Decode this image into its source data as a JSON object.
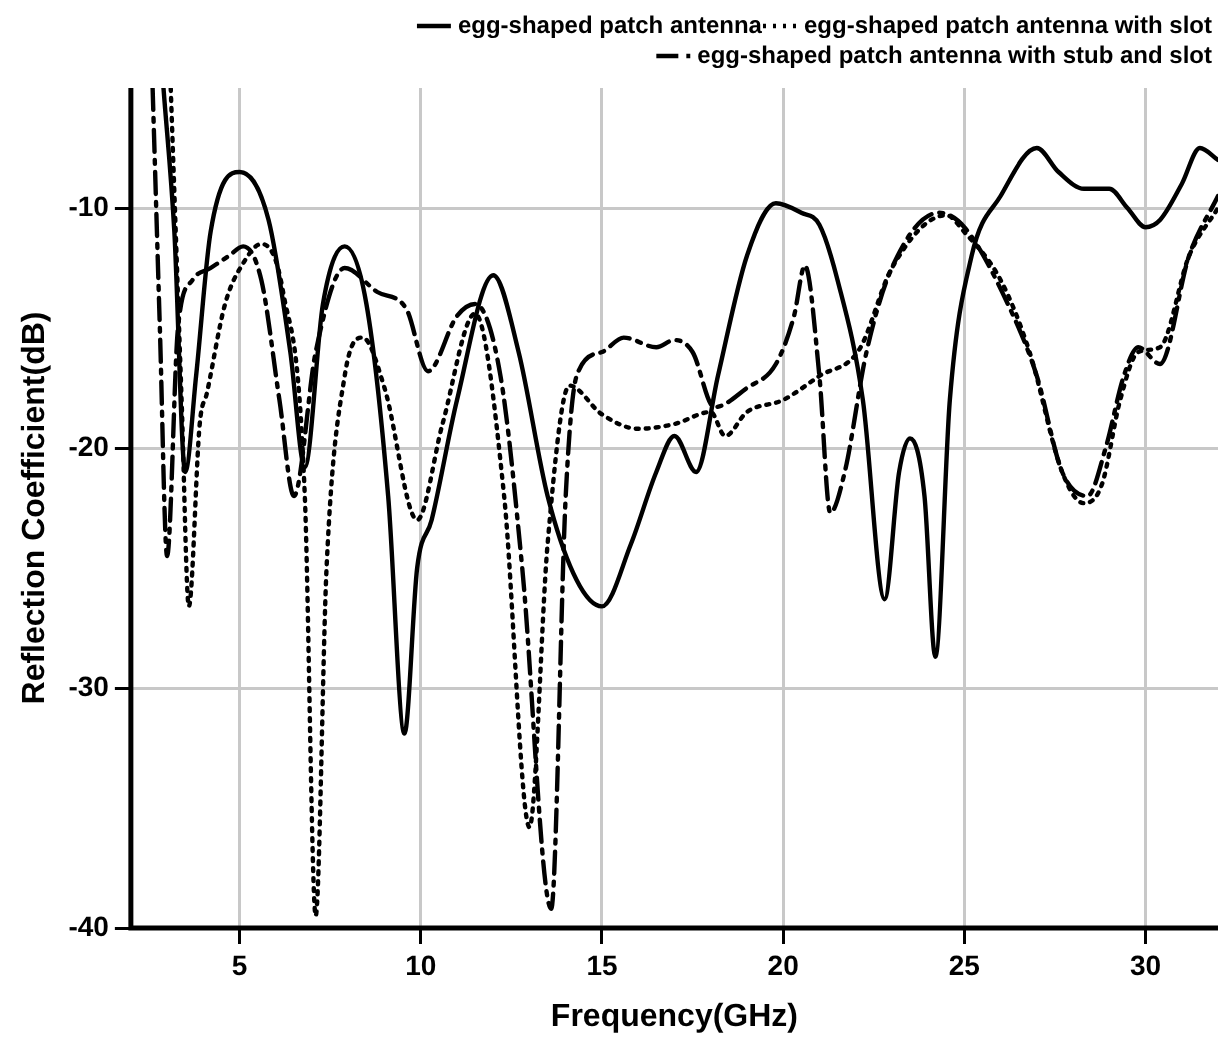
{
  "chart_data": {
    "type": "line",
    "xlabel": "Frequency(GHz)",
    "ylabel": "Reflection Coefficient(dB)",
    "xlim": [
      2,
      32
    ],
    "ylim": [
      -40,
      -5
    ],
    "xticks": [
      5,
      10,
      15,
      20,
      25,
      30
    ],
    "yticks": [
      -40,
      -30,
      -20,
      -10
    ],
    "grid": true,
    "legend": "top right",
    "marker": "none",
    "series": [
      {
        "name": "egg-shaped patch antenna",
        "color": "#000000",
        "line_style": "solid",
        "x": [
          2.9,
          3.2,
          3.5,
          3.8,
          4.2,
          5,
          5.8,
          6.4,
          6.8,
          7.3,
          7.9,
          8.5,
          9.1,
          9.55,
          9.9,
          10.3,
          11,
          12,
          12.7,
          13.5,
          14.3,
          15,
          15.8,
          16.5,
          17,
          17.6,
          18.2,
          19,
          19.8,
          20.5,
          21,
          21.5,
          22.2,
          22.8,
          23.2,
          23.5,
          23.9,
          24.2,
          24.6,
          25.2,
          26,
          27,
          27.6,
          28.3,
          29,
          29.5,
          30,
          30.4,
          31,
          31.5,
          32
        ],
        "values": [
          -5,
          -11,
          -21,
          -17,
          -11,
          -8.5,
          -10.5,
          -16,
          -20.8,
          -14,
          -11.6,
          -14,
          -22,
          -31.9,
          -25,
          -23,
          -18,
          -12.8,
          -16,
          -22,
          -25.5,
          -26.6,
          -24,
          -21,
          -19.5,
          -21,
          -17,
          -12,
          -9.8,
          -10.2,
          -10.7,
          -13,
          -18,
          -26.3,
          -21,
          -19.6,
          -22,
          -28.7,
          -18,
          -12,
          -9.5,
          -7.5,
          -8.5,
          -9.2,
          -9.2,
          -10,
          -10.8,
          -10.5,
          -9,
          -7.5,
          -8
        ]
      },
      {
        "name": "egg-shaped patch antenna with slot",
        "color": "#000000",
        "line_style": "dotted",
        "x": [
          3.1,
          3.4,
          3.6,
          3.9,
          4.1,
          4.6,
          5.1,
          5.6,
          6.2,
          6.8,
          7.1,
          7.4,
          7.9,
          8.4,
          9,
          9.9,
          10.6,
          11.5,
          12.3,
          13,
          13.5,
          14.1,
          15,
          16,
          17,
          18,
          18.4,
          19,
          20,
          21,
          22.1,
          23,
          24.5,
          25,
          26,
          26.8,
          27.7,
          28.3,
          28.8,
          29.3,
          29.8,
          30.4,
          31.2,
          32
        ],
        "values": [
          -5,
          -18,
          -26.6,
          -19,
          -17.7,
          -14,
          -12.3,
          -11.5,
          -13.5,
          -22,
          -39.5,
          -25,
          -17,
          -15.4,
          -17.5,
          -23,
          -19,
          -14.4,
          -22,
          -35.8,
          -24,
          -17.4,
          -18.6,
          -19.2,
          -19,
          -18.5,
          -19.5,
          -18.5,
          -18,
          -17,
          -15.9,
          -12.5,
          -10.3,
          -11,
          -13,
          -16,
          -21,
          -22.3,
          -21.5,
          -18,
          -16,
          -15.8,
          -12,
          -10
        ]
      },
      {
        "name": "egg-shaped patch antenna with stub and slot",
        "color": "#000000",
        "line_style": "dashdot",
        "x": [
          2.6,
          2.8,
          3,
          3.3,
          3.7,
          4.2,
          4.7,
          5.1,
          5.6,
          6.1,
          6.5,
          7.1,
          7.9,
          8.8,
          9.6,
          10.2,
          11,
          11.5,
          12.2,
          12.8,
          13.6,
          14,
          14.3,
          15,
          15.6,
          16.5,
          17,
          17.5,
          18.1,
          19,
          19.8,
          20.3,
          20.6,
          21,
          21.3,
          21.7,
          22.3,
          23,
          24.3,
          25,
          26.2,
          27,
          27.7,
          28.4,
          28.9,
          29.4,
          29.8,
          30.4,
          31.2,
          32
        ],
        "values": [
          -5,
          -15,
          -24.5,
          -15,
          -13,
          -12.5,
          -12,
          -11.6,
          -13,
          -18,
          -22,
          -16,
          -12.5,
          -13.5,
          -14.2,
          -16.8,
          -14.5,
          -14,
          -17,
          -25,
          -39.2,
          -22,
          -17,
          -16,
          -15.4,
          -15.8,
          -15.5,
          -16,
          -18.3,
          -17.5,
          -16.5,
          -14.5,
          -12.4,
          -17,
          -22.7,
          -21,
          -16,
          -12.5,
          -10.2,
          -10.8,
          -14,
          -17,
          -21,
          -22,
          -20,
          -17,
          -15.8,
          -16.5,
          -12,
          -9.5
        ]
      }
    ]
  }
}
